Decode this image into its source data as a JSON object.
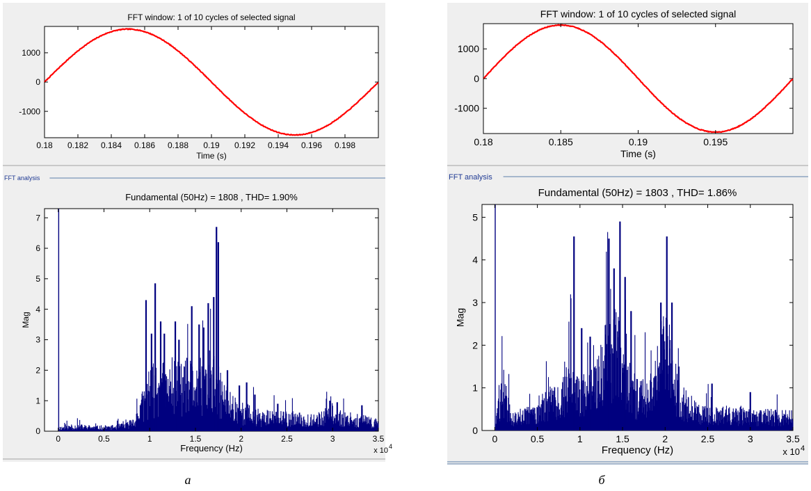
{
  "colors": {
    "signal": "#ff0000",
    "spectrum": "#00007f",
    "group_line": "#5b7fa8",
    "group_text": "#1f3a93",
    "panel_bg": "#efefef"
  },
  "panels": [
    {
      "id": "a",
      "sublabel": "а",
      "fft_group_label": "FFT analysis",
      "chart_data": [
        {
          "type": "line",
          "title": "FFT window: 1 of 10 cycles of selected signal",
          "xlabel": "Time (s)",
          "ylabel": "",
          "xlim": [
            0.18,
            0.2
          ],
          "ylim": [
            -1900,
            1900
          ],
          "xticks": [
            0.18,
            0.182,
            0.184,
            0.186,
            0.188,
            0.19,
            0.192,
            0.194,
            0.196,
            0.198
          ],
          "xtick_labels": [
            "0.18",
            "0.182",
            "0.184",
            "0.186",
            "0.188",
            "0.19",
            "0.192",
            "0.194",
            "0.196",
            "0.198"
          ],
          "yticks": [
            -1000,
            0,
            1000
          ],
          "ytick_labels": [
            "-1000",
            "0",
            "1000"
          ],
          "series": [
            {
              "frequency_hz": 50,
              "amplitude": 1808,
              "x_start": 0.18,
              "x_end": 0.2,
              "ripple": 12
            }
          ]
        },
        {
          "type": "bar",
          "title": "Fundamental (50Hz) = 1808 , THD= 1.90%",
          "xlabel": "Frequency (Hz)",
          "ylabel": "Mag",
          "x_exponent_label": "x 10",
          "x_exponent_power": "4",
          "xlim": [
            -1500,
            35000
          ],
          "ylim": [
            0,
            7.3
          ],
          "xticks": [
            0,
            5000,
            10000,
            15000,
            20000,
            25000,
            30000,
            35000
          ],
          "xtick_labels": [
            "0",
            "0.5",
            "1",
            "1.5",
            "2",
            "2.5",
            "3",
            "3.5"
          ],
          "yticks": [
            0,
            1,
            2,
            3,
            4,
            5,
            6,
            7
          ],
          "ytick_labels": [
            "0",
            "1",
            "2",
            "3",
            "4",
            "5",
            "6",
            "7"
          ],
          "fundamental": {
            "x": 50,
            "value": 7.3
          },
          "spectrum_envelope": [
            [
              150,
              0.12
            ],
            [
              2000,
              0.18
            ],
            [
              4000,
              0.14
            ],
            [
              6000,
              0.15
            ],
            [
              7500,
              0.22
            ],
            [
              8500,
              0.45
            ],
            [
              9200,
              1.0
            ],
            [
              10000,
              1.6
            ],
            [
              11000,
              1.8
            ],
            [
              12000,
              1.65
            ],
            [
              13000,
              1.75
            ],
            [
              14000,
              1.8
            ],
            [
              15000,
              1.75
            ],
            [
              16000,
              1.85
            ],
            [
              17000,
              1.9
            ],
            [
              18000,
              1.3
            ],
            [
              19000,
              1.0
            ],
            [
              20000,
              0.75
            ],
            [
              22000,
              0.55
            ],
            [
              24000,
              0.5
            ],
            [
              26000,
              0.45
            ],
            [
              28000,
              0.48
            ],
            [
              29000,
              0.5
            ],
            [
              30000,
              0.62
            ],
            [
              31000,
              0.5
            ],
            [
              33000,
              0.42
            ],
            [
              35000,
              0.3
            ]
          ],
          "spectrum_peaks": [
            [
              9600,
              4.3
            ],
            [
              10200,
              3.2
            ],
            [
              10600,
              4.85
            ],
            [
              11200,
              3.6
            ],
            [
              11600,
              3.2
            ],
            [
              12800,
              3.6
            ],
            [
              13200,
              3.0
            ],
            [
              14600,
              4.1
            ],
            [
              15400,
              3.5
            ],
            [
              15900,
              3.4
            ],
            [
              16400,
              4.2
            ],
            [
              17000,
              4.4
            ],
            [
              17300,
              6.7
            ],
            [
              17500,
              6.2
            ],
            [
              18500,
              2.0
            ],
            [
              19800,
              1.5
            ],
            [
              20600,
              1.6
            ],
            [
              21500,
              1.2
            ],
            [
              24000,
              0.9
            ],
            [
              29700,
              1.0
            ],
            [
              30500,
              0.95
            ],
            [
              33200,
              0.85
            ]
          ]
        }
      ]
    },
    {
      "id": "b",
      "sublabel": "б",
      "fft_group_label": "FFT analysis",
      "chart_data": [
        {
          "type": "line",
          "title": "FFT window: 1 of 10 cycles of selected signal",
          "xlabel": "Time (s)",
          "ylabel": "",
          "xlim": [
            0.18,
            0.2
          ],
          "ylim": [
            -1850,
            1850
          ],
          "xticks": [
            0.18,
            0.185,
            0.19,
            0.195
          ],
          "xtick_labels": [
            "0.18",
            "0.185",
            "0.19",
            "0.195"
          ],
          "yticks": [
            -1000,
            0,
            1000
          ],
          "ytick_labels": [
            "-1000",
            "0",
            "1000"
          ],
          "series": [
            {
              "frequency_hz": 50,
              "amplitude": 1803,
              "x_start": 0.18,
              "x_end": 0.2,
              "ripple": 12
            }
          ]
        },
        {
          "type": "bar",
          "title": "Fundamental (50Hz) = 1803 , THD= 1.86%",
          "xlabel": "Frequency (Hz)",
          "ylabel": "Mag",
          "x_exponent_label": "x 10",
          "x_exponent_power": "4",
          "xlim": [
            -1500,
            35000
          ],
          "ylim": [
            0,
            5.3
          ],
          "xticks": [
            0,
            5000,
            10000,
            15000,
            20000,
            25000,
            30000,
            35000
          ],
          "xtick_labels": [
            "0",
            "0.5",
            "1",
            "1.5",
            "2",
            "2.5",
            "3",
            "3.5"
          ],
          "yticks": [
            0,
            1,
            2,
            3,
            4,
            5
          ],
          "ytick_labels": [
            "0",
            "1",
            "2",
            "3",
            "4",
            "5"
          ],
          "fundamental": {
            "x": 50,
            "value": 5.3
          },
          "spectrum_envelope": [
            [
              150,
              0.3
            ],
            [
              1000,
              1.1
            ],
            [
              2000,
              0.3
            ],
            [
              3000,
              0.35
            ],
            [
              4000,
              0.45
            ],
            [
              5000,
              0.6
            ],
            [
              6000,
              0.7
            ],
            [
              7000,
              0.8
            ],
            [
              8000,
              1.0
            ],
            [
              9000,
              1.4
            ],
            [
              9500,
              1.0
            ],
            [
              10000,
              0.9
            ],
            [
              11000,
              1.0
            ],
            [
              12000,
              1.3
            ],
            [
              13000,
              2.0
            ],
            [
              14000,
              2.3
            ],
            [
              15000,
              1.9
            ],
            [
              16000,
              1.1
            ],
            [
              17000,
              0.9
            ],
            [
              18000,
              1.0
            ],
            [
              19000,
              1.6
            ],
            [
              20000,
              2.2
            ],
            [
              21000,
              1.5
            ],
            [
              22000,
              0.8
            ],
            [
              24000,
              0.5
            ],
            [
              26000,
              0.45
            ],
            [
              30000,
              0.4
            ],
            [
              35000,
              0.35
            ]
          ],
          "spectrum_peaks": [
            [
              9300,
              4.55
            ],
            [
              10200,
              2.4
            ],
            [
              11200,
              2.2
            ],
            [
              13400,
              4.5
            ],
            [
              14000,
              3.8
            ],
            [
              14700,
              4.9
            ],
            [
              15300,
              3.6
            ],
            [
              16000,
              2.8
            ],
            [
              19500,
              3.0
            ],
            [
              20200,
              4.55
            ],
            [
              20800,
              3.0
            ],
            [
              21600,
              1.5
            ],
            [
              25500,
              1.1
            ],
            [
              30000,
              0.9
            ]
          ]
        }
      ]
    }
  ]
}
